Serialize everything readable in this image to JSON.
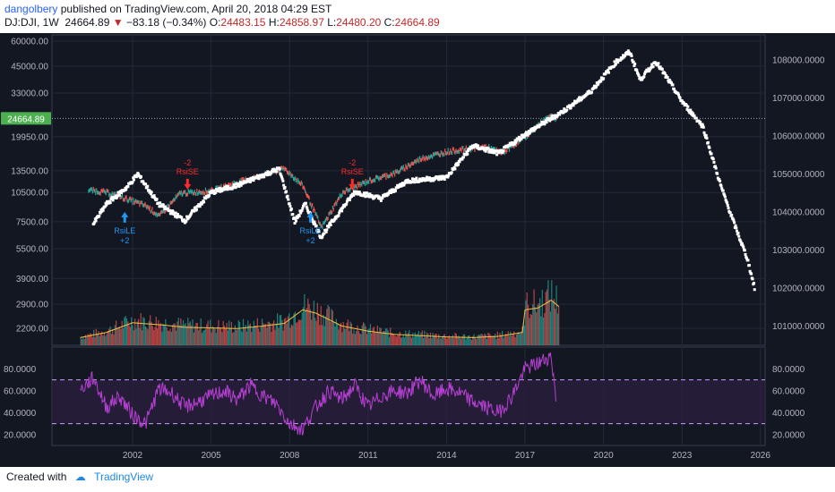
{
  "header": {
    "user": "dangolbery",
    "published": "published on TradingView.com, April 20, 2018 04:29 EST",
    "symbol": "DJ:DJI, 1W",
    "last": "24664.89",
    "change_arrow": "▼",
    "change": "−83.18 (−0.34%)",
    "o_label": "O:",
    "o_val": "24483.15",
    "h_label": "H:",
    "h_val": "24858.97",
    "l_label": "L:",
    "l_val": "24480.20",
    "c_label": "C:",
    "c_val": "24664.89"
  },
  "footer": {
    "created_with": "Created with",
    "brand": "TradingView"
  },
  "colors": {
    "background": "#131722",
    "price_dots": "#ffffff",
    "up_bar": "#26a69a",
    "down_bar": "#ef5350",
    "volume_ma": "#f5c242",
    "rsi": "#b53fd1",
    "rsi_band": "#2a1f3f",
    "signal_long": "#2196f3",
    "signal_short": "#ff2a2a",
    "last_price_badge": "#4caf50"
  },
  "chart_data": [
    {
      "type": "line",
      "panel": "price",
      "scale": "log",
      "left_axis_ticks": [
        "60000.00",
        "45000.00",
        "33000.00",
        "19950.00",
        "13500.00",
        "10500.00",
        "7500.00",
        "5500.00",
        "3900.00",
        "2900.00",
        "2200.00"
      ],
      "right_axis_ticks": [
        "108000.0000",
        "107000.0000",
        "106000.0000",
        "105000.0000",
        "104000.0000",
        "103000.0000",
        "102000.0000",
        "101000.0000"
      ],
      "last_price_label": "24664.89",
      "x_ticks": [
        "2002",
        "2005",
        "2008",
        "2011",
        "2014",
        "2017",
        "2020",
        "2023",
        "2026"
      ],
      "series": [
        {
          "name": "DJ:DJI",
          "x": [
            2000.3,
            2001.0,
            2001.7,
            2002.5,
            2003.0,
            2003.8,
            2005.0,
            2006.0,
            2007.8,
            2008.5,
            2009.2,
            2010.0,
            2011.0,
            2012.0,
            2013.0,
            2014.0,
            2015.5,
            2016.1,
            2017.0,
            2017.9,
            2018.2
          ],
          "y": [
            10800,
            10500,
            9800,
            9000,
            8000,
            10400,
            10700,
            11800,
            13800,
            11300,
            7000,
            10500,
            12000,
            13100,
            15500,
            16800,
            17800,
            16500,
            20000,
            25500,
            24664
          ]
        },
        {
          "name": "projection",
          "x": [
            2000.5,
            2001.0,
            2001.8,
            2002.2,
            2003.0,
            2004.0,
            2005.0,
            2006.0,
            2007.6,
            2008.2,
            2008.6,
            2009.2,
            2010.5,
            2011.5,
            2012.5,
            2014.0,
            2015.0,
            2016.0,
            2017.0,
            2018.5,
            2019.5,
            2020.5,
            2021.0,
            2021.4,
            2022.0,
            2022.5,
            2023.0,
            2023.8,
            2024.5,
            2025.0,
            2025.5,
            2025.8
          ],
          "y": [
            7300,
            9200,
            11200,
            13000,
            9200,
            7600,
            10500,
            11400,
            13800,
            7500,
            9200,
            6300,
            10600,
            9800,
            12000,
            12500,
            18000,
            16500,
            20500,
            27000,
            33500,
            47500,
            53000,
            38500,
            47500,
            38000,
            30000,
            22500,
            11200,
            7300,
            4900,
            3400
          ]
        }
      ],
      "annotations": [
        {
          "type": "long",
          "text": "RsiLE",
          "count": "+2",
          "x": 2001.7
        },
        {
          "type": "short",
          "text": "RsiSE",
          "count": "-2",
          "x": 2004.1
        },
        {
          "type": "long",
          "text": "RsiLE",
          "count": "+2",
          "x": 2008.8
        },
        {
          "type": "short",
          "text": "RsiSE",
          "count": "-2",
          "x": 2010.4
        }
      ]
    },
    {
      "type": "bar",
      "panel": "volume",
      "x": [
        2000.0,
        2001.0,
        2002.0,
        2003.0,
        2004.0,
        2005.0,
        2006.0,
        2007.0,
        2007.8,
        2008.5,
        2009.0,
        2010.0,
        2011.0,
        2012.0,
        2013.0,
        2014.0,
        2015.0,
        2016.0,
        2016.9,
        2017.0,
        2017.5,
        2018.0,
        2018.3
      ],
      "values": [
        0.12,
        0.2,
        0.35,
        0.32,
        0.28,
        0.27,
        0.26,
        0.3,
        0.34,
        0.55,
        0.5,
        0.3,
        0.22,
        0.17,
        0.15,
        0.13,
        0.12,
        0.14,
        0.2,
        0.55,
        0.58,
        0.7,
        0.6
      ]
    },
    {
      "type": "line",
      "panel": "rsi",
      "right_axis_ticks": [
        "80.0000",
        "60.0000",
        "40.0000",
        "20.0000"
      ],
      "left_axis_ticks": [
        "80.0000",
        "60.0000",
        "40.0000",
        "20.0000"
      ],
      "levels": [
        70,
        30
      ],
      "x": [
        2000.0,
        2000.5,
        2001.0,
        2001.5,
        2002.0,
        2002.5,
        2003.0,
        2003.5,
        2004.0,
        2004.5,
        2005.0,
        2005.5,
        2006.0,
        2006.5,
        2007.0,
        2007.5,
        2008.0,
        2008.5,
        2009.0,
        2009.5,
        2010.0,
        2010.5,
        2011.0,
        2011.5,
        2012.0,
        2012.5,
        2013.0,
        2013.5,
        2014.0,
        2014.5,
        2015.0,
        2015.5,
        2016.0,
        2016.5,
        2017.0,
        2017.5,
        2018.0,
        2018.2
      ],
      "y": [
        60,
        72,
        45,
        55,
        38,
        30,
        62,
        58,
        45,
        50,
        55,
        60,
        52,
        65,
        55,
        48,
        30,
        25,
        45,
        60,
        52,
        65,
        45,
        55,
        60,
        58,
        70,
        55,
        62,
        58,
        50,
        45,
        40,
        55,
        80,
        85,
        92,
        50
      ]
    }
  ]
}
